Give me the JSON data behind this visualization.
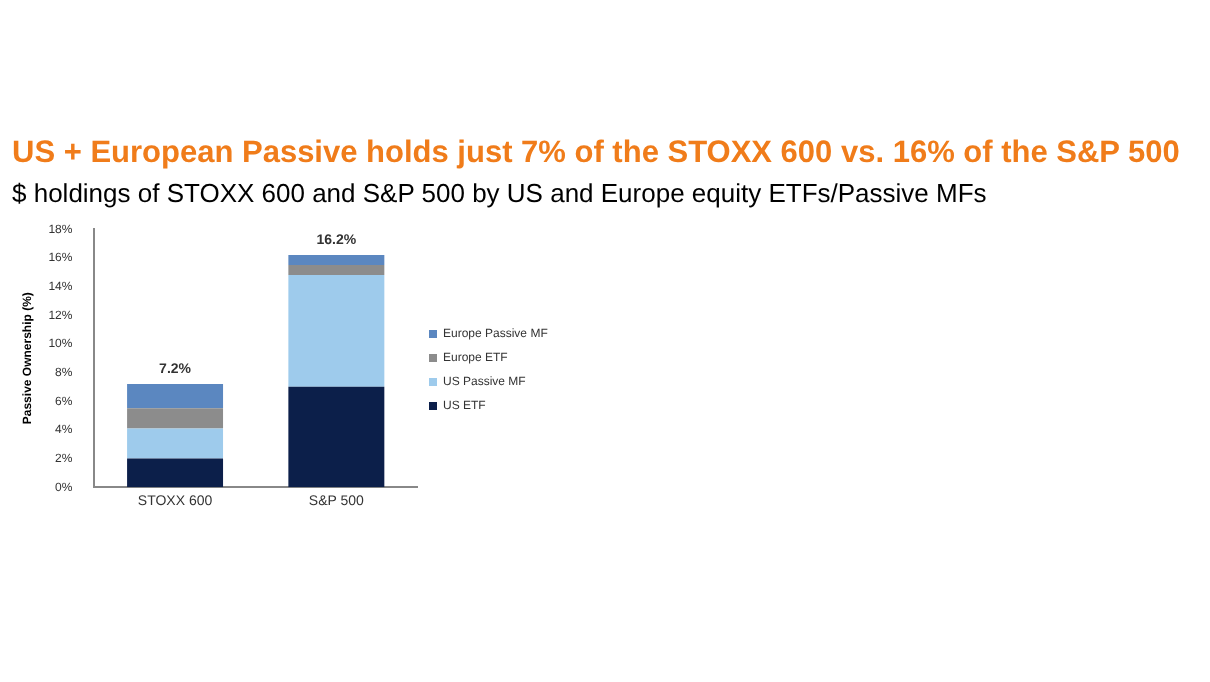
{
  "chart_data": {
    "type": "bar",
    "title": "US + European Passive holds just 7% of the STOXX 600 vs. 16% of the S&P 500",
    "subtitle": "$ holdings of STOXX 600 and S&P 500 by US and Europe equity ETFs/Passive MFs",
    "ylabel": "Passive Ownership (%)",
    "categories": [
      "STOXX 600",
      "S&P 500"
    ],
    "stacked": true,
    "legend": "right",
    "series": [
      {
        "name": "US ETF",
        "color": "#0c1f4a",
        "values": [
          2.0,
          7.0
        ]
      },
      {
        "name": "US Passive MF",
        "color": "#9ecbec",
        "values": [
          2.1,
          7.8
        ]
      },
      {
        "name": "Europe ETF",
        "color": "#8c8c8c",
        "values": [
          1.4,
          0.7
        ]
      },
      {
        "name": "Europe Passive MF",
        "color": "#5b87c0",
        "values": [
          1.7,
          0.7
        ]
      }
    ],
    "totals": [
      "7.2%",
      "16.2%"
    ],
    "ylim": [
      0,
      18
    ],
    "yticks": [
      {
        "value": 0,
        "label": "0%"
      },
      {
        "value": 2,
        "label": "2%"
      },
      {
        "value": 4,
        "label": "4%"
      },
      {
        "value": 6,
        "label": "6%"
      },
      {
        "value": 8,
        "label": "8%"
      },
      {
        "value": 10,
        "label": "10%"
      },
      {
        "value": 12,
        "label": "12%"
      },
      {
        "value": 14,
        "label": "14%"
      },
      {
        "value": 16,
        "label": "16%"
      },
      {
        "value": 18,
        "label": "18%"
      }
    ],
    "grid": false
  }
}
